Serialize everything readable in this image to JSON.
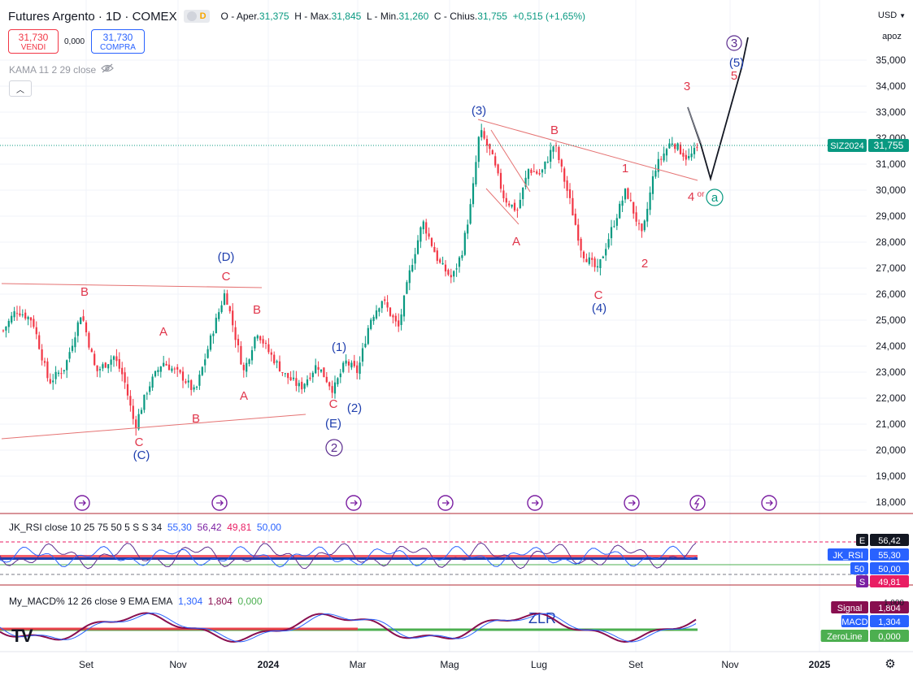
{
  "header": {
    "title": "Futures Argento · 1D · COMEX",
    "d_badge": "D",
    "open_label": "O - Aper.",
    "open": "31,375",
    "high_label": "H - Max.",
    "high": "31,845",
    "low_label": "L - Min.",
    "low": "31,260",
    "close_label": "C - Chius.",
    "close": "31,755",
    "change": "+0,515 (+1,65%)"
  },
  "trade": {
    "sell_price": "31,730",
    "sell_label": "VENDI",
    "spread": "0,000",
    "buy_price": "31,730",
    "buy_label": "COMPRA"
  },
  "indicator_kama": "KAMA 11 2 29 close",
  "controls": {
    "currency": "USD",
    "scale": "apoz"
  },
  "price_axis": [
    "35,000",
    "34,000",
    "33,000",
    "32,000",
    "31,000",
    "30,000",
    "29,000",
    "28,000",
    "27,000",
    "26,000",
    "25,000",
    "24,000",
    "23,000",
    "22,000",
    "21,000",
    "20,000",
    "19,000",
    "18,000"
  ],
  "price_tag": {
    "symbol": "SIZ2024",
    "value": "31,755"
  },
  "time_axis": [
    "Set",
    "Nov",
    "2024",
    "Mar",
    "Mag",
    "Lug",
    "Set",
    "Nov",
    "2025"
  ],
  "waves": {
    "d_paren": "(D)",
    "c_d": "C",
    "b_left": "B",
    "a_left": "A",
    "b_mid": "B",
    "a_mid": "A",
    "b_low": "B",
    "c_low": "C",
    "c_paren": "(C)",
    "e_paren": "(E)",
    "c_e": "C",
    "one_paren": "(1)",
    "two_paren": "(2)",
    "two_circle": "2",
    "three_paren": "(3)",
    "a_top": "A",
    "b_top": "B",
    "c_four": "C",
    "four_paren": "(4)",
    "one": "1",
    "two": "2",
    "three": "3",
    "four_or": "4",
    "or_text": "or",
    "a_circle": "a",
    "five_paren": "(5)",
    "five": "5",
    "three_circle": "3",
    "zlr": "ZLR"
  },
  "rsi": {
    "legend_name": "JK_RSI",
    "legend_params": "close 10 25 75 50 5 S S 34",
    "v1": "55,30",
    "v2": "56,42",
    "v3": "49,81",
    "v4": "50,00",
    "tags": [
      {
        "k": "E",
        "v": "56,42"
      },
      {
        "k": "JK_RSI",
        "v": "55,30"
      },
      {
        "k": "50",
        "v": "50,00"
      },
      {
        "k": "S",
        "v": "49,81"
      }
    ]
  },
  "macd": {
    "legend_name": "My_MACD%",
    "legend_params": "12 26 close 9 EMA EMA",
    "v1": "1,304",
    "v2": "1,804",
    "v3": "0,000",
    "tags": [
      {
        "k": "Signal",
        "v": "1,804"
      },
      {
        "k": "MACD",
        "v": "1,304"
      },
      {
        "k": "ZeroLine",
        "v": "0,000"
      }
    ],
    "axis_top": "1,000"
  },
  "colors": {
    "up": "#089981",
    "down": "#f23645",
    "wave_red": "#e0364b",
    "wave_blue": "#1f3fae",
    "wave_purple": "#5b2c8e",
    "grid": "#f0f3fa"
  }
}
